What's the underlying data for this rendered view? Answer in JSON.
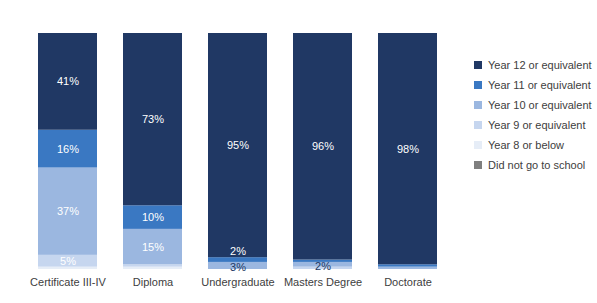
{
  "chart_data": {
    "type": "bar",
    "stacked": true,
    "data_labels": true,
    "tick_labels": "x",
    "legend": "right",
    "categories": [
      "Certificate III-IV",
      "Diploma",
      "Undergraduate",
      "Masters Degree",
      "Doctorate"
    ],
    "ylim": [
      0,
      100
    ],
    "series": [
      {
        "name": "Year 12 or equivalent",
        "color": "#203864",
        "values": [
          41,
          73,
          95,
          96,
          98
        ],
        "value_labels": [
          "41%",
          "73%",
          "95%",
          "96%",
          "98%"
        ]
      },
      {
        "name": "Year 11 or equivalent",
        "color": "#3a78c2",
        "values": [
          16,
          10,
          2,
          1,
          1
        ],
        "value_labels": [
          "16%",
          "10%",
          "2%",
          null,
          null
        ]
      },
      {
        "name": "Year 10 or equivalent",
        "color": "#9bb7e0",
        "values": [
          37,
          15,
          3,
          2,
          1
        ],
        "value_labels": [
          "37%",
          "15%",
          "3%",
          "2%",
          null
        ]
      },
      {
        "name": "Year 9 or equivalent",
        "color": "#c6d6ef",
        "values": [
          5,
          1,
          0,
          1,
          0
        ],
        "value_labels": [
          "5%",
          null,
          null,
          null,
          null
        ]
      },
      {
        "name": "Year 8 or below",
        "color": "#e6edf7",
        "values": [
          1,
          1,
          0,
          0,
          0
        ],
        "value_labels": [
          null,
          null,
          null,
          null,
          null
        ]
      },
      {
        "name": "Did not go to school",
        "color": "#7f7f7f",
        "values": [
          0,
          0,
          0,
          0,
          0
        ],
        "value_labels": [
          null,
          null,
          null,
          null,
          null
        ]
      }
    ]
  }
}
